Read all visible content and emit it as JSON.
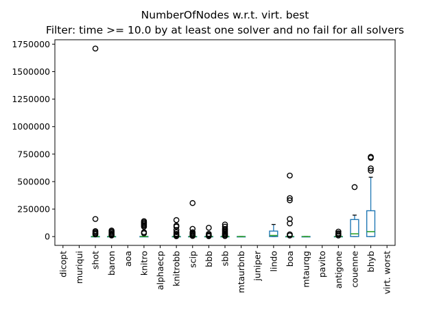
{
  "chart_data": {
    "type": "boxplot",
    "title": "NumberOfNodes w.r.t. virt. best",
    "subtitle": "Filter: time >= 10.0 by at least one solver and no fail for all solvers",
    "xlabel": "",
    "ylabel": "",
    "ylim": [
      -80000,
      1790000
    ],
    "yticks": [
      0,
      250000,
      500000,
      750000,
      1000000,
      1250000,
      1500000,
      1750000
    ],
    "ytick_labels": [
      "0",
      "250000",
      "500000",
      "750000",
      "1000000",
      "1250000",
      "1500000",
      "1750000"
    ],
    "grid": false,
    "categories": [
      "dicopt",
      "muriqui",
      "shot",
      "baron",
      "aoa",
      "knitro",
      "alphaecp",
      "knitrobb",
      "scip",
      "bbb",
      "sbb",
      "mtaurbnb",
      "juniper",
      "lindo",
      "boa",
      "mtaurqg",
      "pavito",
      "antigone",
      "couenne",
      "bhyb",
      "virt. worst"
    ],
    "boxes": [
      null,
      null,
      {
        "q1": 0,
        "median": 0,
        "q3": 1000,
        "whislo": 0,
        "whishi": 2000,
        "fliers": [
          1710000,
          160000,
          50000,
          40000,
          30000,
          20000
        ]
      },
      {
        "q1": 0,
        "median": 0,
        "q3": 1000,
        "whislo": 0,
        "whishi": 2000,
        "fliers": [
          55000,
          45000,
          35000,
          25000,
          18000,
          10000
        ]
      },
      null,
      {
        "q1": 0,
        "median": 0,
        "q3": 1000,
        "whislo": 0,
        "whishi": 2000,
        "fliers": [
          140000,
          130000,
          120000,
          110000,
          100000,
          90000,
          40000,
          30000
        ]
      },
      null,
      {
        "q1": 0,
        "median": 0,
        "q3": 1000,
        "whislo": 0,
        "whishi": 2000,
        "fliers": [
          150000,
          100000,
          90000,
          60000,
          40000,
          25000,
          15000,
          8000,
          4000
        ]
      },
      {
        "q1": 0,
        "median": 0,
        "q3": 1000,
        "whislo": 0,
        "whishi": 2000,
        "fliers": [
          305000,
          70000,
          40000,
          30000,
          20000,
          12000,
          6000
        ]
      },
      {
        "q1": 0,
        "median": 0,
        "q3": 1000,
        "whislo": 0,
        "whishi": 2000,
        "fliers": [
          80000,
          25000,
          15000,
          8000,
          4000
        ]
      },
      {
        "q1": 0,
        "median": 0,
        "q3": 1000,
        "whislo": 0,
        "whishi": 2000,
        "fliers": [
          110000,
          90000,
          70000,
          60000,
          50000,
          40000,
          30000,
          20000,
          10000,
          5000
        ]
      },
      {
        "q1": 0,
        "median": 0,
        "q3": 500,
        "whislo": 0,
        "whishi": 1000,
        "fliers": []
      },
      null,
      {
        "q1": 0,
        "median": 10000,
        "q3": 50000,
        "whislo": 0,
        "whishi": 110000,
        "fliers": []
      },
      {
        "q1": 0,
        "median": 0,
        "q3": 1000,
        "whislo": 0,
        "whishi": 2000,
        "fliers": [
          555000,
          350000,
          330000,
          160000,
          120000,
          20000,
          10000
        ]
      },
      {
        "q1": 0,
        "median": 0,
        "q3": 500,
        "whislo": 0,
        "whishi": 1000,
        "fliers": []
      },
      null,
      {
        "q1": 0,
        "median": 0,
        "q3": 1000,
        "whislo": 0,
        "whishi": 2000,
        "fliers": [
          45000,
          30000,
          20000,
          10000
        ]
      },
      {
        "q1": 0,
        "median": 25000,
        "q3": 155000,
        "whislo": 0,
        "whishi": 195000,
        "fliers": [
          450000
        ]
      },
      {
        "q1": 0,
        "median": 45000,
        "q3": 235000,
        "whislo": 0,
        "whishi": 540000,
        "fliers": [
          725000,
          715000,
          620000,
          600000
        ]
      },
      null
    ],
    "colors": {
      "box": "#1f77b4",
      "median": "#2ca02c",
      "flier": "#000000"
    }
  }
}
